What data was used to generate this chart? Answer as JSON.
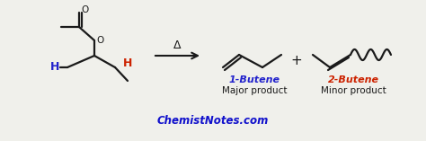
{
  "bg_color": "#f0f0eb",
  "text_color_black": "#1a1a1a",
  "text_color_blue": "#2222cc",
  "text_color_red": "#cc2200",
  "text_color_chemist": "#1111cc",
  "label_1butene": "1-Butene",
  "label_2butene": "2-Butene",
  "label_major": "Major product",
  "label_minor": "Minor product",
  "label_website": "ChemistNotes.com",
  "delta_symbol": "Δ",
  "figsize": [
    4.74,
    1.57
  ],
  "dpi": 100
}
